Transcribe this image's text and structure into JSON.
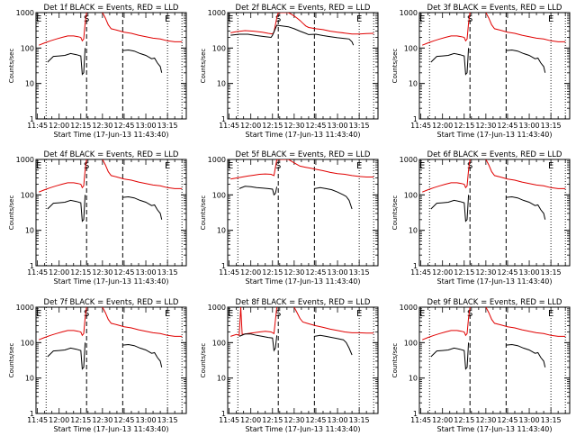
{
  "chart_data": {
    "type": "line",
    "panels": [
      {
        "title": "Det 1f BLACK = Events, RED = LLD",
        "variant": "a"
      },
      {
        "title": "Det 2f BLACK = Events, RED = LLD",
        "variant": "b"
      },
      {
        "title": "Det 3f BLACK = Events, RED = LLD",
        "variant": "a"
      },
      {
        "title": "Det 4f BLACK = Events, RED = LLD",
        "variant": "a"
      },
      {
        "title": "Det 5f BLACK = Events, RED = LLD",
        "variant": "c"
      },
      {
        "title": "Det 6f BLACK = Events, RED = LLD",
        "variant": "a"
      },
      {
        "title": "Det 7f BLACK = Events, RED = LLD",
        "variant": "a"
      },
      {
        "title": "Det 8f BLACK = Events, RED = LLD",
        "variant": "d"
      },
      {
        "title": "Det 9f BLACK = Events, RED = LLD",
        "variant": "a"
      }
    ],
    "xlabel": "Start Time (17-Jun-13 11:43:40)",
    "ylabel": "Counts/sec",
    "x_ticks": [
      "11:45",
      "12:00",
      "12:15",
      "12:30",
      "12:45",
      "13:00",
      "13:15"
    ],
    "x_tick_minutes": [
      105,
      120,
      135,
      150,
      165,
      180,
      195
    ],
    "xlim_minutes": [
      104,
      208
    ],
    "yscale": "log",
    "ylim": [
      1,
      1000
    ],
    "y_ticks": [
      "1",
      "10",
      "100",
      "1000"
    ],
    "y_tick_values": [
      1,
      10,
      100,
      1000
    ],
    "segment_markers": [
      {
        "label": "E",
        "minute": 106
      },
      {
        "label": "S",
        "minute": 139
      },
      {
        "label": "E",
        "minute": 195
      }
    ],
    "dashed_lines_minutes": [
      139,
      164
    ],
    "dotted_lines_minutes": [
      111,
      195,
      205
    ],
    "series_colors": {
      "events": "#000000",
      "lld": "#e00000"
    },
    "series_by_variant": {
      "a": {
        "events": [
          [
            112,
            40
          ],
          [
            116,
            58
          ],
          [
            120,
            60
          ],
          [
            124,
            62
          ],
          [
            128,
            70
          ],
          [
            132,
            65
          ],
          [
            135,
            60
          ],
          [
            136,
            18
          ],
          [
            137,
            20
          ],
          [
            138,
            100
          ],
          [
            164,
            85
          ],
          [
            168,
            88
          ],
          [
            172,
            82
          ],
          [
            176,
            70
          ],
          [
            180,
            62
          ],
          [
            184,
            50
          ],
          [
            186,
            52
          ],
          [
            188,
            38
          ],
          [
            190,
            30
          ],
          [
            191,
            20
          ]
        ],
        "lld": [
          [
            106,
            120
          ],
          [
            110,
            140
          ],
          [
            114,
            160
          ],
          [
            118,
            180
          ],
          [
            122,
            200
          ],
          [
            126,
            220
          ],
          [
            130,
            220
          ],
          [
            133,
            210
          ],
          [
            135,
            200
          ],
          [
            136,
            160
          ],
          [
            137,
            180
          ],
          [
            138,
            500
          ],
          [
            139,
            1000
          ],
          [
            150,
            1000
          ],
          [
            152,
            700
          ],
          [
            154,
            450
          ],
          [
            156,
            350
          ],
          [
            160,
            320
          ],
          [
            165,
            280
          ],
          [
            170,
            260
          ],
          [
            175,
            230
          ],
          [
            180,
            210
          ],
          [
            185,
            190
          ],
          [
            190,
            180
          ],
          [
            195,
            160
          ],
          [
            200,
            150
          ],
          [
            205,
            150
          ]
        ]
      },
      "b": {
        "events": [
          [
            106,
            230
          ],
          [
            112,
            245
          ],
          [
            118,
            245
          ],
          [
            124,
            225
          ],
          [
            130,
            210
          ],
          [
            134,
            200
          ],
          [
            135,
            230
          ],
          [
            138,
            440
          ],
          [
            146,
            400
          ],
          [
            150,
            350
          ],
          [
            154,
            300
          ],
          [
            158,
            260
          ],
          [
            160,
            240
          ],
          [
            165,
            245
          ],
          [
            170,
            225
          ],
          [
            175,
            210
          ],
          [
            180,
            195
          ],
          [
            185,
            185
          ],
          [
            188,
            180
          ],
          [
            190,
            150
          ],
          [
            191,
            120
          ]
        ],
        "lld": [
          [
            106,
            270
          ],
          [
            110,
            290
          ],
          [
            116,
            310
          ],
          [
            122,
            300
          ],
          [
            128,
            280
          ],
          [
            132,
            260
          ],
          [
            135,
            250
          ],
          [
            136,
            280
          ],
          [
            138,
            720
          ],
          [
            139,
            1000
          ],
          [
            146,
            1000
          ],
          [
            148,
            900
          ],
          [
            150,
            800
          ],
          [
            152,
            700
          ],
          [
            154,
            600
          ],
          [
            156,
            500
          ],
          [
            158,
            420
          ],
          [
            160,
            380
          ],
          [
            165,
            350
          ],
          [
            170,
            330
          ],
          [
            175,
            300
          ],
          [
            180,
            280
          ],
          [
            185,
            265
          ],
          [
            190,
            250
          ],
          [
            195,
            250
          ],
          [
            200,
            255
          ],
          [
            205,
            260
          ]
        ]
      },
      "c": {
        "events": [
          [
            112,
            150
          ],
          [
            116,
            175
          ],
          [
            120,
            170
          ],
          [
            124,
            160
          ],
          [
            128,
            155
          ],
          [
            132,
            150
          ],
          [
            135,
            145
          ],
          [
            136,
            100
          ],
          [
            137,
            110
          ],
          [
            138,
            170
          ],
          [
            164,
            150
          ],
          [
            168,
            160
          ],
          [
            172,
            150
          ],
          [
            176,
            140
          ],
          [
            180,
            120
          ],
          [
            184,
            100
          ],
          [
            186,
            90
          ],
          [
            188,
            70
          ],
          [
            190,
            40
          ]
        ],
        "lld": [
          [
            106,
            280
          ],
          [
            110,
            300
          ],
          [
            114,
            320
          ],
          [
            118,
            340
          ],
          [
            122,
            360
          ],
          [
            126,
            380
          ],
          [
            130,
            390
          ],
          [
            134,
            380
          ],
          [
            136,
            350
          ],
          [
            138,
            1000
          ],
          [
            146,
            1000
          ],
          [
            150,
            800
          ],
          [
            154,
            650
          ],
          [
            158,
            600
          ],
          [
            162,
            560
          ],
          [
            166,
            520
          ],
          [
            170,
            480
          ],
          [
            175,
            430
          ],
          [
            180,
            400
          ],
          [
            185,
            380
          ],
          [
            190,
            350
          ],
          [
            195,
            330
          ],
          [
            200,
            320
          ],
          [
            205,
            320
          ]
        ]
      },
      "d": {
        "events": [
          [
            112,
            150
          ],
          [
            116,
            175
          ],
          [
            120,
            175
          ],
          [
            124,
            160
          ],
          [
            128,
            150
          ],
          [
            132,
            140
          ],
          [
            135,
            135
          ],
          [
            136,
            60
          ],
          [
            137,
            70
          ],
          [
            138,
            160
          ],
          [
            164,
            150
          ],
          [
            168,
            160
          ],
          [
            172,
            150
          ],
          [
            176,
            140
          ],
          [
            180,
            130
          ],
          [
            184,
            120
          ],
          [
            186,
            100
          ],
          [
            188,
            70
          ],
          [
            190,
            45
          ]
        ],
        "lld": [
          [
            106,
            150
          ],
          [
            110,
            170
          ],
          [
            112,
            160
          ],
          [
            113,
            1000
          ],
          [
            114,
            170
          ],
          [
            118,
            180
          ],
          [
            122,
            190
          ],
          [
            126,
            200
          ],
          [
            130,
            210
          ],
          [
            134,
            200
          ],
          [
            136,
            180
          ],
          [
            138,
            1000
          ],
          [
            150,
            1000
          ],
          [
            152,
            700
          ],
          [
            154,
            480
          ],
          [
            156,
            380
          ],
          [
            160,
            340
          ],
          [
            165,
            300
          ],
          [
            170,
            270
          ],
          [
            175,
            240
          ],
          [
            180,
            220
          ],
          [
            185,
            200
          ],
          [
            190,
            190
          ],
          [
            195,
            190
          ],
          [
            200,
            185
          ],
          [
            205,
            185
          ]
        ]
      }
    }
  }
}
